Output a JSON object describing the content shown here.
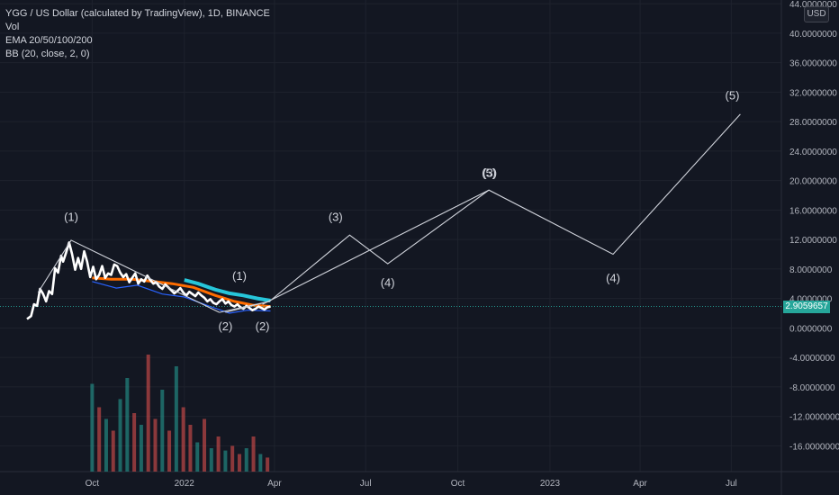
{
  "header": {
    "symbol_line": "YGG / US Dollar (calculated by TradingView), 1D, BINANCE",
    "indicators": [
      "Vol",
      "EMA 20/50/100/200",
      "BB (20, close, 2, 0)"
    ]
  },
  "currency_button": "USD",
  "last_price": {
    "label": "2.9059657",
    "value": 2.9059657,
    "color": "#26a69a"
  },
  "colors": {
    "background": "#131722",
    "grid": "#1e222d",
    "axis_text": "#b2b5be",
    "price_line": "#ffffff",
    "wave_line": "#d1d4dc",
    "ema_fast": "#ff6d00",
    "ema_slow": "#26c6da",
    "bb_band": "#2962ff",
    "candle_up": "#26a69a",
    "candle_down": "#ef5350"
  },
  "chart_data": {
    "type": "line",
    "title": "YGG / US Dollar (calculated by TradingView), 1D, BINANCE",
    "y_axis": {
      "range": [
        -19.5,
        44.5
      ],
      "ticks": [
        "44.0000000",
        "40.0000000",
        "36.0000000",
        "32.0000000",
        "28.0000000",
        "24.0000000",
        "20.0000000",
        "16.0000000",
        "12.0000000",
        "8.0000000",
        "4.0000000",
        "0.0000000",
        "-4.0000000",
        "-8.0000000",
        "-12.0000000",
        "-16.0000000"
      ],
      "tick_values": [
        44,
        40,
        36,
        32,
        28,
        24,
        20,
        16,
        12,
        8,
        4,
        0,
        -4,
        -8,
        -12,
        -16
      ],
      "position": "right",
      "grid": true
    },
    "x_axis": {
      "range": [
        "2021-07-01",
        "2023-08-20"
      ],
      "labels": [
        {
          "text": "Oct",
          "date": "2021-10-01"
        },
        {
          "text": "2022",
          "date": "2022-01-01"
        },
        {
          "text": "Apr",
          "date": "2022-04-01"
        },
        {
          "text": "Jul",
          "date": "2022-07-01"
        },
        {
          "text": "Oct",
          "date": "2022-10-01"
        },
        {
          "text": "2023",
          "date": "2023-01-01"
        },
        {
          "text": "Apr",
          "date": "2023-04-01"
        },
        {
          "text": "Jul",
          "date": "2023-07-01"
        }
      ],
      "grid": true
    },
    "series": [
      {
        "kind": "price",
        "x": [
          "2021-07-28",
          "2021-08-01",
          "2021-08-04",
          "2021-08-07",
          "2021-08-10",
          "2021-08-13",
          "2021-08-16",
          "2021-08-19",
          "2021-08-22",
          "2021-08-25",
          "2021-08-28",
          "2021-08-31",
          "2021-09-02",
          "2021-09-05",
          "2021-09-08",
          "2021-09-11",
          "2021-09-14",
          "2021-09-17",
          "2021-09-20",
          "2021-09-23",
          "2021-09-26",
          "2021-09-29",
          "2021-10-02",
          "2021-10-05",
          "2021-10-08",
          "2021-10-11",
          "2021-10-14",
          "2021-10-17",
          "2021-10-20",
          "2021-10-23",
          "2021-10-26",
          "2021-10-29",
          "2021-11-01",
          "2021-11-04",
          "2021-11-07",
          "2021-11-10",
          "2021-11-13",
          "2021-11-16",
          "2021-11-19",
          "2021-11-22",
          "2021-11-25",
          "2021-11-28",
          "2021-12-01",
          "2021-12-04",
          "2021-12-07",
          "2021-12-10",
          "2021-12-13",
          "2021-12-16",
          "2021-12-19",
          "2021-12-22",
          "2021-12-25",
          "2021-12-28",
          "2021-12-31",
          "2022-01-03",
          "2022-01-06",
          "2022-01-09",
          "2022-01-12",
          "2022-01-15",
          "2022-01-18",
          "2022-01-21",
          "2022-01-24",
          "2022-01-27",
          "2022-01-30",
          "2022-02-02",
          "2022-02-05",
          "2022-02-08",
          "2022-02-11",
          "2022-02-14",
          "2022-02-17",
          "2022-02-20",
          "2022-02-23",
          "2022-02-26",
          "2022-03-01",
          "2022-03-04",
          "2022-03-07",
          "2022-03-10",
          "2022-03-13",
          "2022-03-16",
          "2022-03-19",
          "2022-03-22",
          "2022-03-25",
          "2022-03-28"
        ],
        "y": [
          1.2,
          1.6,
          3.2,
          3.0,
          5.3,
          4.6,
          3.6,
          5.0,
          4.6,
          8.1,
          7.5,
          9.8,
          9.0,
          10.2,
          11.6,
          10.0,
          7.9,
          9.5,
          8.0,
          10.4,
          9.0,
          6.9,
          8.3,
          6.6,
          7.2,
          8.4,
          6.8,
          7.4,
          7.2,
          8.6,
          8.4,
          7.5,
          6.9,
          7.3,
          6.2,
          6.8,
          7.4,
          6.0,
          6.6,
          6.3,
          7.1,
          6.5,
          6.0,
          6.2,
          5.6,
          5.3,
          5.9,
          5.5,
          5.1,
          4.7,
          5.0,
          5.4,
          4.8,
          4.4,
          4.9,
          4.6,
          4.3,
          4.8,
          4.4,
          4.1,
          3.6,
          3.9,
          3.4,
          3.2,
          3.6,
          3.9,
          3.3,
          3.6,
          3.1,
          2.9,
          3.2,
          2.8,
          2.6,
          3.0,
          2.7,
          2.4,
          2.6,
          2.9,
          2.7,
          2.5,
          2.8,
          2.9
        ]
      },
      {
        "kind": "ema_slow",
        "x": [
          "2022-01-01",
          "2022-01-15",
          "2022-02-01",
          "2022-02-15",
          "2022-03-01",
          "2022-03-15",
          "2022-03-28"
        ],
        "y": [
          6.5,
          6.0,
          5.2,
          4.7,
          4.4,
          4.0,
          3.7
        ]
      },
      {
        "kind": "ema_fast",
        "x": [
          "2021-10-01",
          "2021-10-20",
          "2021-11-10",
          "2021-12-01",
          "2021-12-20",
          "2022-01-10",
          "2022-02-01",
          "2022-02-20",
          "2022-03-10",
          "2022-03-28"
        ],
        "y": [
          6.8,
          6.6,
          6.6,
          6.3,
          6.0,
          5.5,
          4.4,
          3.6,
          3.1,
          2.9
        ]
      },
      {
        "kind": "bb_lower",
        "x": [
          "2021-10-01",
          "2021-10-25",
          "2021-11-15",
          "2021-12-10",
          "2022-01-01",
          "2022-01-25",
          "2022-02-15",
          "2022-03-05",
          "2022-03-28"
        ],
        "y": [
          6.3,
          5.4,
          5.8,
          4.6,
          4.2,
          3.0,
          2.0,
          2.4,
          2.3
        ]
      }
    ],
    "wave_annotations": [
      {
        "label": "(1)",
        "x": "2021-09-10",
        "y": 14.5
      },
      {
        "label": "(2)",
        "x": "2022-02-11",
        "y": -0.3
      },
      {
        "label": "(1)",
        "x": "2022-02-25",
        "y": 6.5
      },
      {
        "label": "(2)",
        "x": "2022-03-20",
        "y": -0.3
      },
      {
        "label": "(3)",
        "x": "2022-06-01",
        "y": 14.5
      },
      {
        "label": "(4)",
        "x": "2022-07-23",
        "y": 5.6
      },
      {
        "label": "(5)",
        "x": "2022-11-01",
        "y": 20.5
      },
      {
        "label": "(3)",
        "x": "2022-11-02",
        "y": 20.5
      },
      {
        "label": "(4)",
        "x": "2023-03-05",
        "y": 6.2
      },
      {
        "label": "(5)",
        "x": "2023-07-02",
        "y": 31.0
      }
    ],
    "wave_paths": [
      {
        "x": [
          "2021-08-08",
          "2021-09-10",
          "2022-02-05"
        ],
        "y": [
          4.8,
          11.9,
          2.1
        ]
      },
      {
        "x": [
          "2022-02-05",
          "2022-03-27"
        ],
        "y": [
          2.1,
          3.6
        ]
      },
      {
        "x": [
          "2022-02-11",
          "2022-03-27",
          "2022-06-15",
          "2022-07-23",
          "2022-11-01",
          "2023-03-05",
          "2023-07-10"
        ],
        "y": [
          2.1,
          3.6,
          12.6,
          8.7,
          18.7,
          10.0,
          29.0
        ]
      },
      {
        "x": [
          "2022-03-20",
          "2022-11-01"
        ],
        "y": [
          3.2,
          18.7
        ]
      }
    ],
    "volume": {
      "x": [
        "2021-10-01",
        "2021-10-08",
        "2021-10-15",
        "2021-10-22",
        "2021-10-29",
        "2021-11-05",
        "2021-11-12",
        "2021-11-19",
        "2021-11-26",
        "2021-12-03",
        "2021-12-10",
        "2021-12-17",
        "2021-12-24",
        "2021-12-31",
        "2022-01-07",
        "2022-01-14",
        "2022-01-21",
        "2022-01-28",
        "2022-02-04",
        "2022-02-11",
        "2022-02-18",
        "2022-02-25",
        "2022-03-04",
        "2022-03-11",
        "2022-03-18",
        "2022-03-25"
      ],
      "values": [
        0.75,
        0.55,
        0.45,
        0.35,
        0.62,
        0.8,
        0.5,
        0.4,
        1.0,
        0.45,
        0.7,
        0.35,
        0.9,
        0.55,
        0.4,
        0.25,
        0.45,
        0.2,
        0.3,
        0.18,
        0.22,
        0.15,
        0.2,
        0.3,
        0.15,
        0.12
      ],
      "up": [
        true,
        false,
        true,
        false,
        true,
        true,
        false,
        true,
        false,
        false,
        true,
        false,
        true,
        false,
        false,
        true,
        false,
        true,
        false,
        true,
        false,
        false,
        true,
        false,
        true,
        false
      ]
    }
  }
}
